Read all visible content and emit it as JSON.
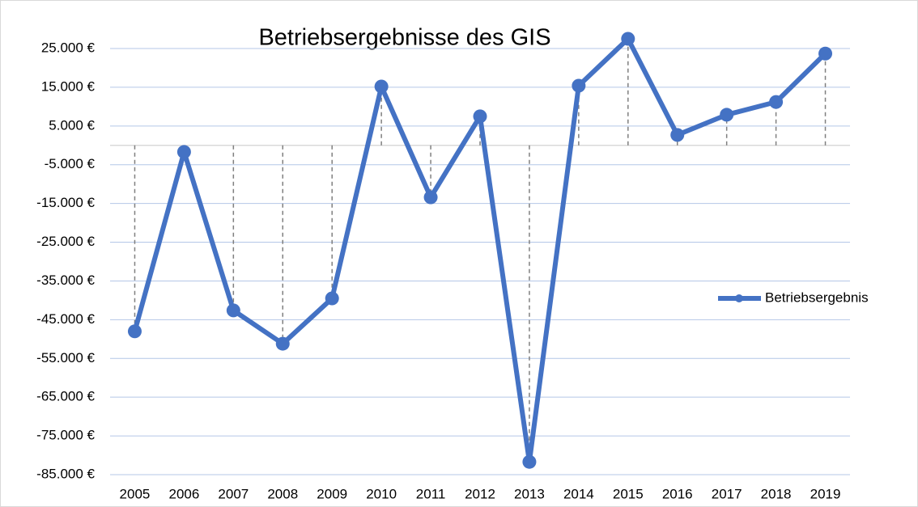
{
  "chart_data": {
    "type": "line",
    "title": "Betriebsergebnisse des GIS",
    "categories": [
      "2005",
      "2006",
      "2007",
      "2008",
      "2009",
      "2010",
      "2011",
      "2012",
      "2013",
      "2014",
      "2015",
      "2016",
      "2017",
      "2018",
      "2019"
    ],
    "series": [
      {
        "name": "Betriebsergebnis",
        "color": "#4472c4",
        "values": [
          -48000,
          -1700,
          -42600,
          -51200,
          -39500,
          15200,
          -13400,
          7500,
          -81700,
          15400,
          27500,
          2700,
          7900,
          11200,
          23700
        ]
      }
    ],
    "ylim": [
      -85000,
      25000
    ],
    "yticks": [
      {
        "value": 25000,
        "label": "25.000 €"
      },
      {
        "value": 15000,
        "label": "15.000 €"
      },
      {
        "value": 5000,
        "label": "5.000 €"
      },
      {
        "value": -5000,
        "label": "-5.000 €"
      },
      {
        "value": -15000,
        "label": "-15.000 €"
      },
      {
        "value": -25000,
        "label": "-25.000 €"
      },
      {
        "value": -35000,
        "label": "-35.000 €"
      },
      {
        "value": -45000,
        "label": "-45.000 €"
      },
      {
        "value": -55000,
        "label": "-55.000 €"
      },
      {
        "value": -65000,
        "label": "-65.000 €"
      },
      {
        "value": -75000,
        "label": "-75.000 €"
      },
      {
        "value": -85000,
        "label": "-85.000 €"
      }
    ],
    "grid": true,
    "drop_lines": true,
    "legend": "right"
  }
}
